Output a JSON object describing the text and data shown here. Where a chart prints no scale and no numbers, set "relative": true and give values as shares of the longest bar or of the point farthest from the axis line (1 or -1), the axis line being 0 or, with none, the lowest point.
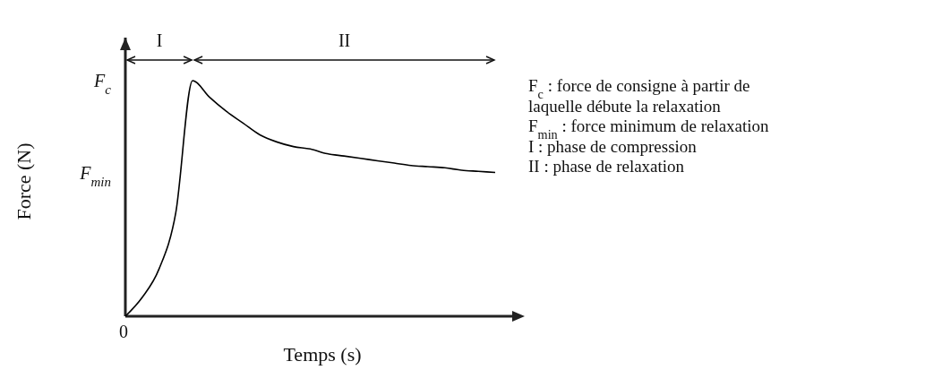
{
  "chart_data": {
    "type": "line",
    "xlabel": "Temps (s)",
    "ylabel": "Force (N)",
    "categories": [
      null,
      null,
      null,
      null,
      null,
      null,
      null,
      null,
      null,
      null,
      null,
      null,
      null,
      null,
      null,
      null,
      null,
      null,
      null,
      null,
      null,
      null,
      null
    ],
    "series": [
      {
        "color": "#000000",
        "values": [
          0,
          0.08,
          0.2,
          0.44,
          1,
          0.93,
          0.87,
          0.82,
          0.77,
          0.74,
          0.72,
          0.71,
          0.69,
          0.68,
          0.67,
          0.66,
          0.65,
          0.64,
          0.635,
          0.63,
          0.62,
          0.615,
          0.61
        ]
      }
    ],
    "relative": true,
    "grid": false,
    "marker": "none",
    "line_style": "solid",
    "annotations": [
      "I",
      "II",
      "0",
      "F$_{min}$",
      "F$_{c}$",
      "F$_{c}$ : force de consigne à partir de",
      "laquelle débute la relaxation",
      "F$_{min}$ : force minimum de relaxation",
      "I : phase de compression",
      "II : phase de relaxation"
    ]
  }
}
